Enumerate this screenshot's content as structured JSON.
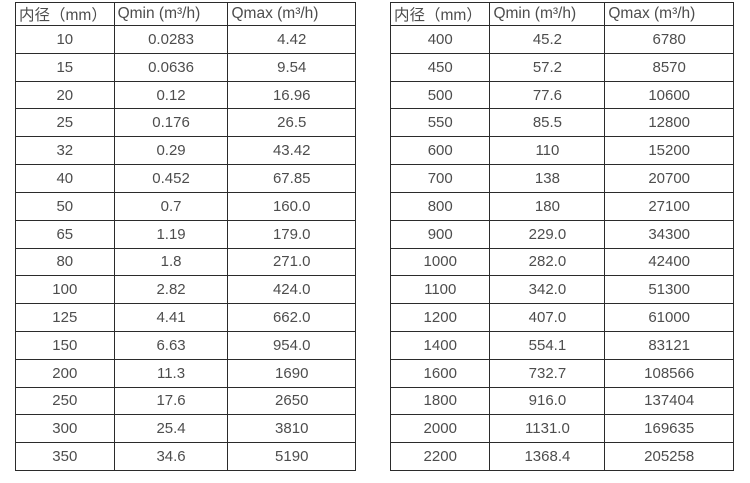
{
  "colors": {
    "background": "#ffffff",
    "border": "#2b2b2b",
    "text": "#4d4d4d"
  },
  "tables": [
    {
      "name": "flow-spec-table-small-diameters",
      "headers": [
        "内径（mm）",
        "Qmin (m³/h)",
        "Qmax (m³/h)"
      ],
      "rows": [
        [
          "10",
          "0.0283",
          "4.42"
        ],
        [
          "15",
          "0.0636",
          "9.54"
        ],
        [
          "20",
          "0.12",
          "16.96"
        ],
        [
          "25",
          "0.176",
          "26.5"
        ],
        [
          "32",
          "0.29",
          "43.42"
        ],
        [
          "40",
          "0.452",
          "67.85"
        ],
        [
          "50",
          "0.7",
          "160.0"
        ],
        [
          "65",
          "1.19",
          "179.0"
        ],
        [
          "80",
          "1.8",
          "271.0"
        ],
        [
          "100",
          "2.82",
          "424.0"
        ],
        [
          "125",
          "4.41",
          "662.0"
        ],
        [
          "150",
          "6.63",
          "954.0"
        ],
        [
          "200",
          "11.3",
          "1690"
        ],
        [
          "250",
          "17.6",
          "2650"
        ],
        [
          "300",
          "25.4",
          "3810"
        ],
        [
          "350",
          "34.6",
          "5190"
        ]
      ]
    },
    {
      "name": "flow-spec-table-large-diameters",
      "headers": [
        "内径（mm）",
        "Qmin (m³/h)",
        "Qmax (m³/h)"
      ],
      "rows": [
        [
          "400",
          "45.2",
          "6780"
        ],
        [
          "450",
          "57.2",
          "8570"
        ],
        [
          "500",
          "77.6",
          "10600"
        ],
        [
          "550",
          "85.5",
          "12800"
        ],
        [
          "600",
          "110",
          "15200"
        ],
        [
          "700",
          "138",
          "20700"
        ],
        [
          "800",
          "180",
          "27100"
        ],
        [
          "900",
          "229.0",
          "34300"
        ],
        [
          "1000",
          "282.0",
          "42400"
        ],
        [
          "1100",
          "342.0",
          "51300"
        ],
        [
          "1200",
          "407.0",
          "61000"
        ],
        [
          "1400",
          "554.1",
          "83121"
        ],
        [
          "1600",
          "732.7",
          "108566"
        ],
        [
          "1800",
          "916.0",
          "137404"
        ],
        [
          "2000",
          "1131.0",
          "169635"
        ],
        [
          "2200",
          "1368.4",
          "205258"
        ]
      ]
    }
  ]
}
